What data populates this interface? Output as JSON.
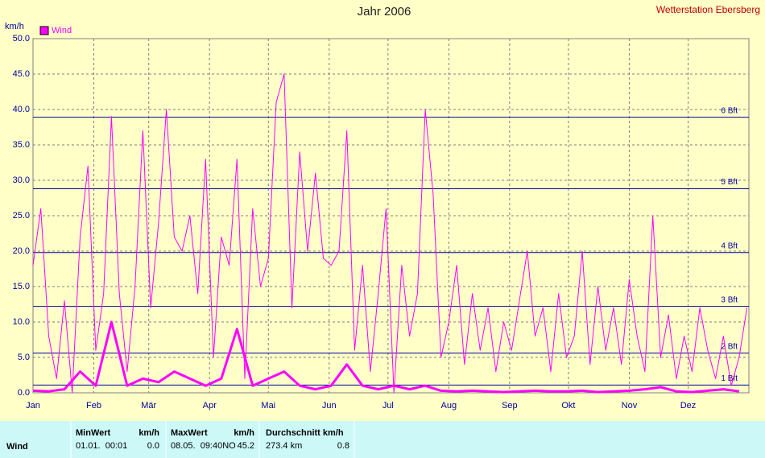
{
  "chart_data": {
    "type": "line",
    "title": "Jahr 2006",
    "subtitle": "Wetterstation Ebersberg",
    "ylabel": "km/h",
    "xlim": [
      0,
      365
    ],
    "xticks": [
      {
        "value": 0,
        "label": "Jan"
      },
      {
        "value": 31,
        "label": "Feb"
      },
      {
        "value": 59,
        "label": "Mär"
      },
      {
        "value": 90,
        "label": "Apr"
      },
      {
        "value": 120,
        "label": "Mai"
      },
      {
        "value": 151,
        "label": "Jun"
      },
      {
        "value": 181,
        "label": "Jul"
      },
      {
        "value": 212,
        "label": "Aug"
      },
      {
        "value": 243,
        "label": "Sep"
      },
      {
        "value": 273,
        "label": "Okt"
      },
      {
        "value": 304,
        "label": "Nov"
      },
      {
        "value": 334,
        "label": "Dez"
      }
    ],
    "ylim": [
      0,
      50
    ],
    "yticks": [
      {
        "value": 0,
        "label": "0.0"
      },
      {
        "value": 5,
        "label": "5.0"
      },
      {
        "value": 10,
        "label": "10.0"
      },
      {
        "value": 15,
        "label": "15.0"
      },
      {
        "value": 20,
        "label": "20.0"
      },
      {
        "value": 25,
        "label": "25.0"
      },
      {
        "value": 30,
        "label": "30.0"
      },
      {
        "value": 35,
        "label": "35.0"
      },
      {
        "value": 40,
        "label": "40.0"
      },
      {
        "value": 45,
        "label": "45.0"
      },
      {
        "value": 50,
        "label": "50.0"
      }
    ],
    "grid": true,
    "legend": "top-left",
    "reference_lines": [
      {
        "value": 1.1,
        "label": "1 Bft"
      },
      {
        "value": 5.6,
        "label": "2 Bft"
      },
      {
        "value": 12.2,
        "label": "3 Bft"
      },
      {
        "value": 19.8,
        "label": "4 Bft"
      },
      {
        "value": 28.8,
        "label": "5 Bft"
      },
      {
        "value": 38.9,
        "label": "6 Bft"
      }
    ],
    "reference_color": "#0000a0",
    "series": [
      {
        "name": "Wind",
        "color": "#ff00ff",
        "line_width": 1,
        "x": [
          0,
          4,
          8,
          12,
          16,
          20,
          24,
          28,
          32,
          36,
          40,
          44,
          48,
          52,
          56,
          60,
          64,
          68,
          72,
          76,
          80,
          84,
          88,
          92,
          96,
          100,
          104,
          108,
          112,
          116,
          120,
          124,
          128,
          132,
          136,
          140,
          144,
          148,
          152,
          156,
          160,
          164,
          168,
          172,
          176,
          180,
          184,
          188,
          192,
          196,
          200,
          204,
          208,
          212,
          216,
          220,
          224,
          228,
          232,
          236,
          240,
          244,
          248,
          252,
          256,
          260,
          264,
          268,
          272,
          276,
          280,
          284,
          288,
          292,
          296,
          300,
          304,
          308,
          312,
          316,
          320,
          324,
          328,
          332,
          336,
          340,
          344,
          348,
          352,
          356,
          360,
          364
        ],
        "values": [
          18,
          26,
          8,
          2,
          13,
          0,
          22,
          32,
          6,
          14,
          39,
          14,
          3,
          15,
          37,
          12,
          24,
          40,
          22,
          20,
          25,
          14,
          33,
          5,
          22,
          18,
          33,
          2,
          26,
          15,
          19,
          41,
          45,
          12,
          34,
          20,
          31,
          19,
          18,
          20,
          37,
          6,
          18,
          3,
          14,
          26,
          0,
          18,
          8,
          14,
          40,
          28,
          5,
          10,
          18,
          4,
          14,
          6,
          12,
          3,
          10,
          6,
          13,
          20,
          8,
          12,
          3,
          14,
          5,
          8,
          20,
          4,
          15,
          6,
          12,
          4,
          16,
          8,
          3,
          25,
          5,
          11,
          2,
          8,
          3,
          12,
          6,
          2,
          8,
          1,
          5,
          12
        ]
      },
      {
        "color": "#ff00ff",
        "line_width": 3,
        "x": [
          0,
          8,
          16,
          24,
          32,
          40,
          48,
          56,
          64,
          72,
          80,
          88,
          96,
          104,
          112,
          120,
          128,
          136,
          144,
          152,
          160,
          168,
          176,
          184,
          192,
          200,
          208,
          216,
          224,
          232,
          240,
          248,
          256,
          264,
          272,
          280,
          288,
          296,
          304,
          312,
          320,
          328,
          336,
          344,
          352,
          360
        ],
        "values": [
          0.3,
          0.2,
          0.5,
          3,
          1,
          10,
          1,
          2,
          1.5,
          3,
          2,
          1,
          2,
          9,
          1,
          2,
          3,
          1,
          0.5,
          1,
          4,
          1,
          0.5,
          1,
          0.5,
          1,
          0.3,
          0.2,
          0.3,
          0.2,
          0.1,
          0.2,
          0.3,
          0.2,
          0.2,
          0.3,
          0.1,
          0.2,
          0.3,
          0.5,
          0.8,
          0.2,
          0.1,
          0.3,
          0.5,
          0.2
        ]
      }
    ]
  },
  "table": {
    "columns": [
      "MinWert",
      "km/h",
      "MaxWert",
      "km/h",
      "Durchschnitt km/h"
    ],
    "rows": [
      {
        "label": "Wind",
        "cells": [
          "01.01.  00:01",
          "0.0",
          "08.05.  09:40NO",
          "45.2",
          "273.4 km",
          "0.8"
        ]
      }
    ]
  }
}
